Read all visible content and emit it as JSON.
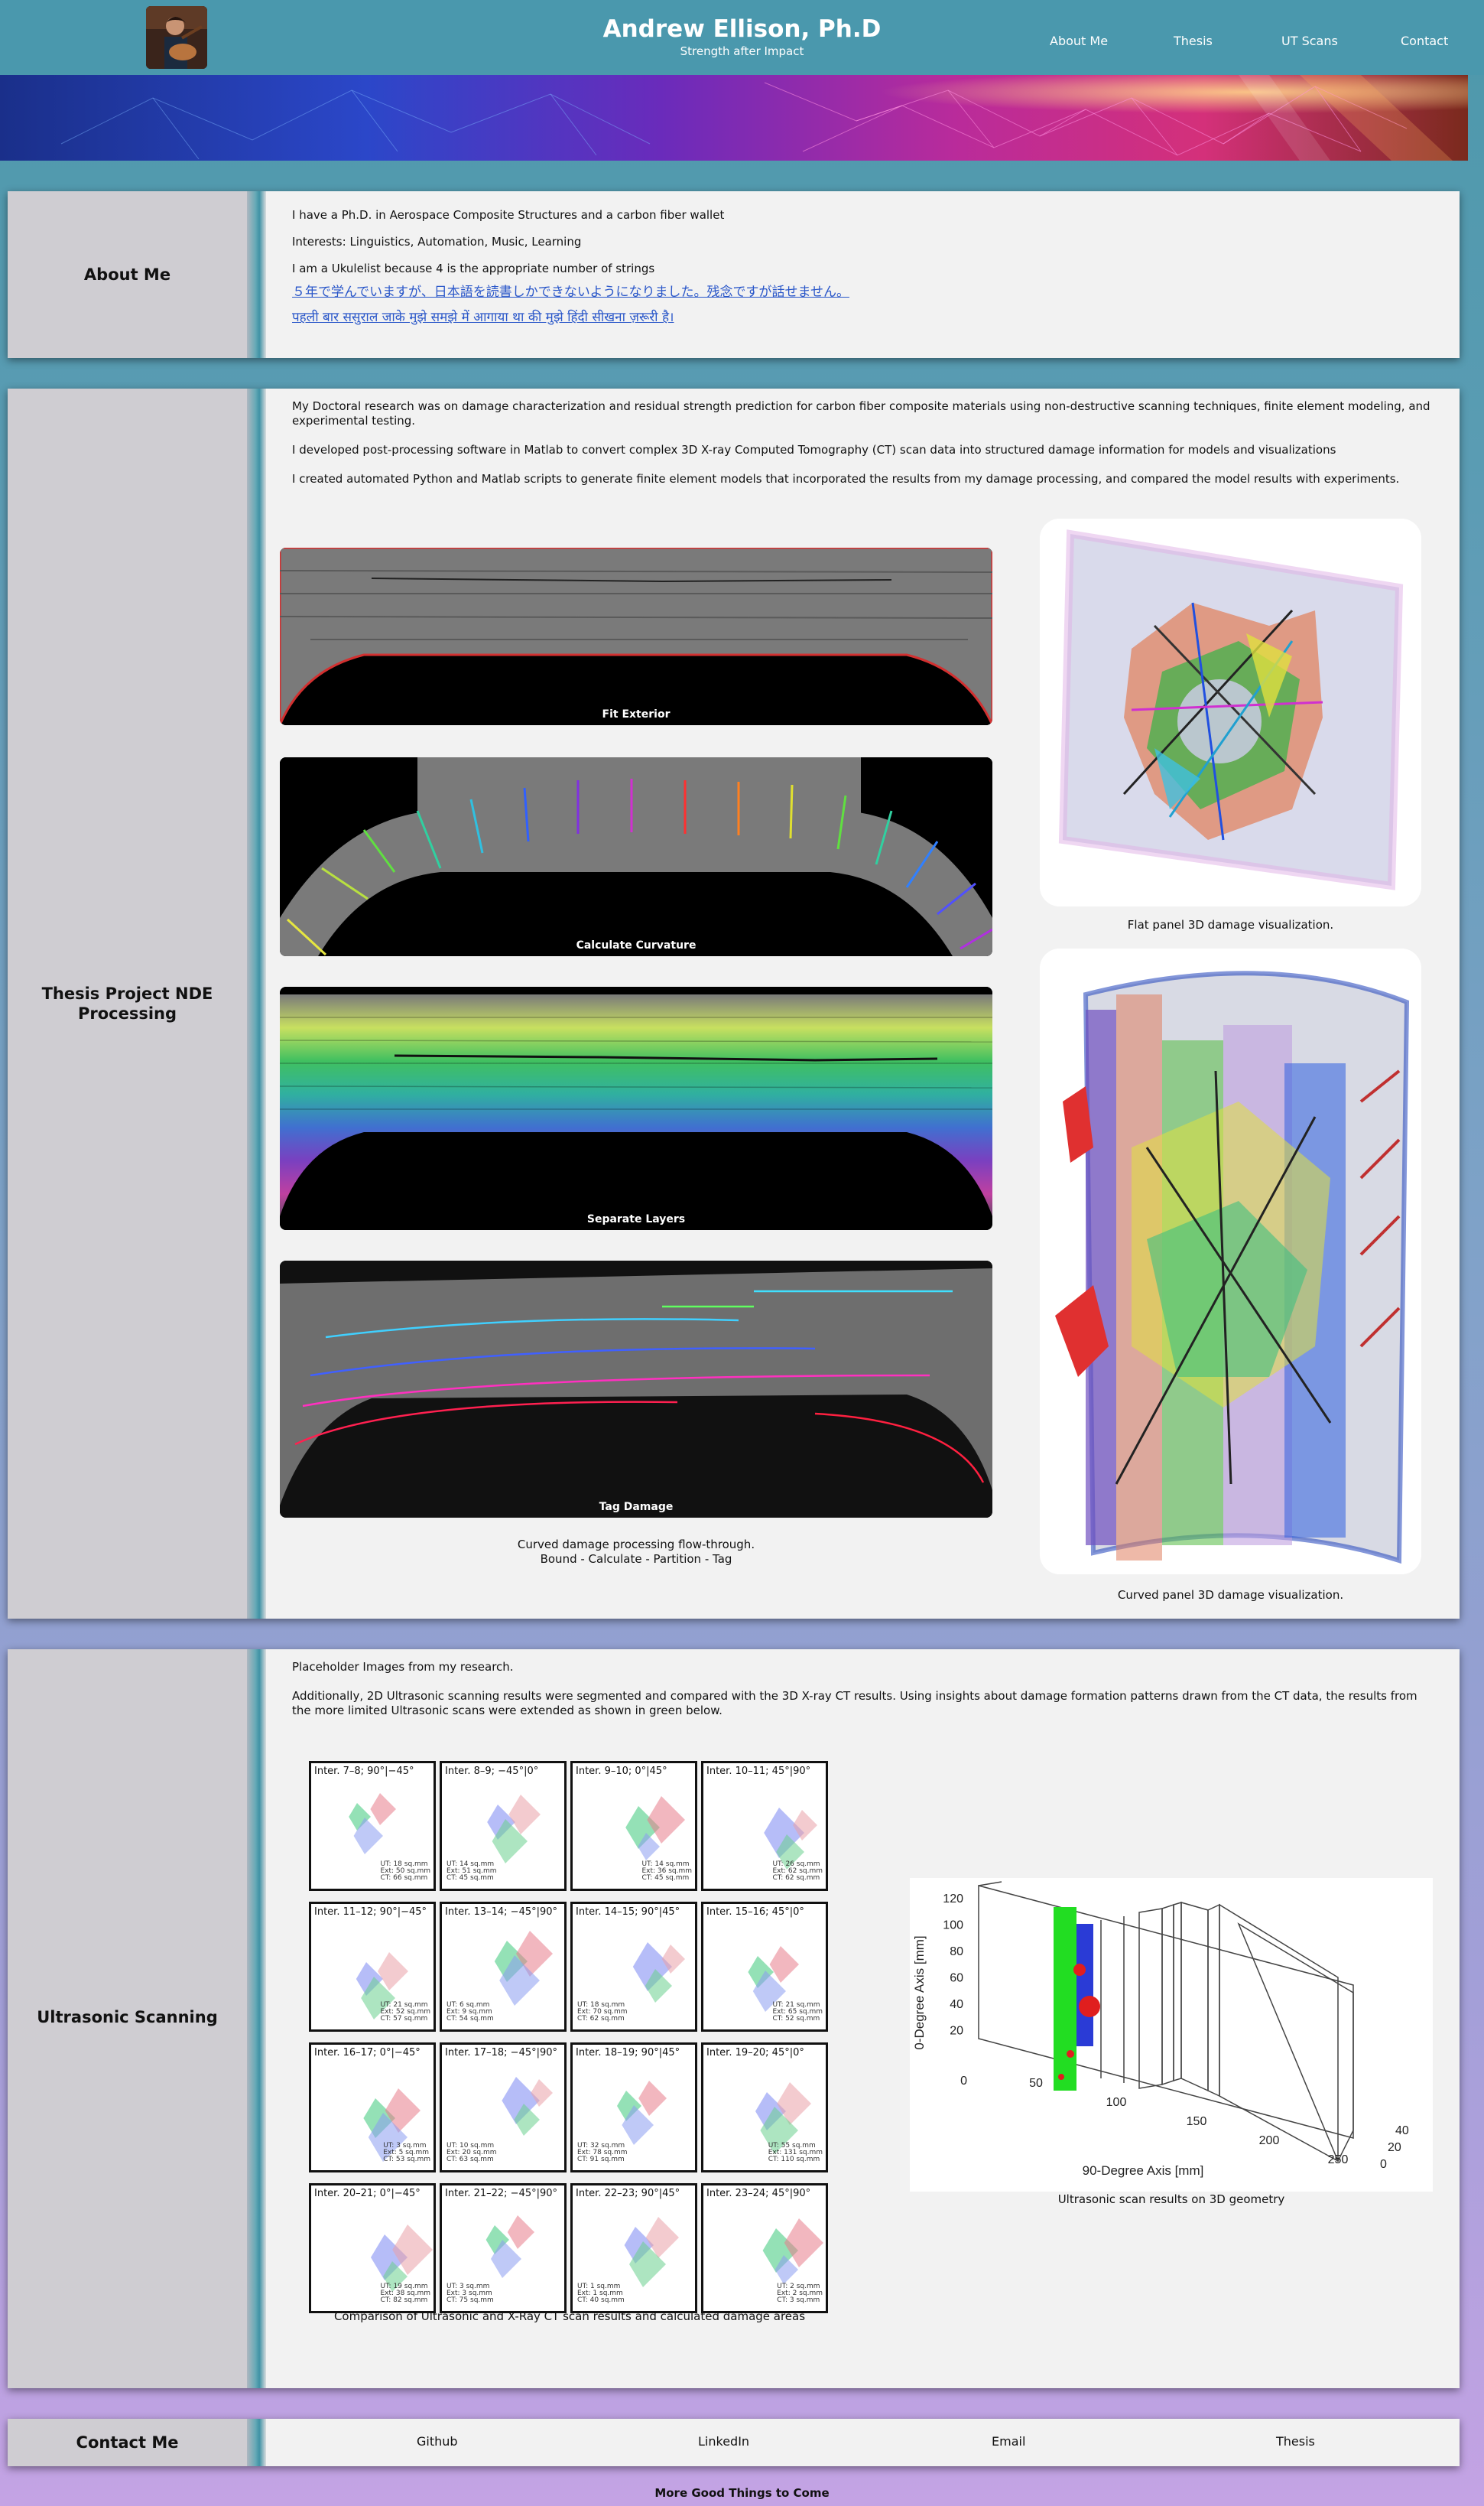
{
  "header": {
    "title": "Andrew Ellison, Ph.D",
    "subtitle": "Strength after Impact",
    "nav": [
      "About Me",
      "Thesis",
      "UT Scans",
      "Contact"
    ]
  },
  "about": {
    "heading": "About Me",
    "lines": [
      "I have a Ph.D. in Aerospace Composite Structures and a carbon fiber wallet",
      "Interests: Linguistics, Automation, Music, Learning",
      "I am a Ukulelist because 4 is the appropriate number of strings"
    ],
    "japanese": "５年で学んでいますが、日本語を読書しかできないようになりました。残念ですが話せません。",
    "hindi": "पहली बार ससुराल जाके मुझे समझे में आगाया था की मुझे हिंदी सीखना ज़रूरी है।"
  },
  "thesis": {
    "heading": "Thesis Project NDE Processing",
    "paragraphs": [
      "My Doctoral research was on damage characterization and residual strength prediction for carbon fiber composite materials using non-destructive scanning techniques, finite element modeling, and experimental testing.",
      "I developed post-processing software in Matlab to convert complex 3D X-ray Computed Tomography (CT) scan data into structured damage information for models and visualizations",
      "I created automated Python and Matlab scripts to generate finite element models that incorporated the results from my damage processing, and compared the model results with experiments."
    ],
    "panels": [
      "Fit Exterior",
      "Calculate Curvature",
      "Separate Layers",
      "Tag Damage"
    ],
    "flow_caption_1": "Curved damage processing flow-through.",
    "flow_caption_2": "Bound - Calculate - Partition - Tag",
    "flat_caption": "Flat panel 3D damage visualization.",
    "curved_caption": "Curved panel 3D damage visualization."
  },
  "ut": {
    "heading": "Ultrasonic Scanning",
    "p1": "Placeholder Images from my research.",
    "p2": "Additionally, 2D Ultrasonic scanning results were segmented and compared with the 3D X-ray CT results. Using insights about damage formation patterns drawn from the CT data, the results from the more limited Ultrasonic scans were extended as shown in green below.",
    "cells": [
      {
        "title": "Inter. 7–8; 90°|−45°",
        "stats": "UT: 18 sq.mm\nExt: 50 sq.mm\nCT: 66 sq.mm"
      },
      {
        "title": "Inter. 8–9; −45°|0°",
        "stats": "UT: 14 sq.mm\nExt: 51 sq.mm\nCT: 45 sq.mm"
      },
      {
        "title": "Inter. 9–10; 0°|45°",
        "stats": "UT: 14 sq.mm\nExt: 36 sq.mm\nCT: 45 sq.mm"
      },
      {
        "title": "Inter. 10–11; 45°|90°",
        "stats": "UT: 26 sq.mm\nExt: 62 sq.mm\nCT: 62 sq.mm"
      },
      {
        "title": "Inter. 11–12; 90°|−45°",
        "stats": "UT: 21 sq.mm\nExt: 52 sq.mm\nCT: 57 sq.mm"
      },
      {
        "title": "Inter. 13–14; −45°|90°",
        "stats": "UT: 6 sq.mm\nExt: 9 sq.mm\nCT: 54 sq.mm"
      },
      {
        "title": "Inter. 14–15; 90°|45°",
        "stats": "UT: 18 sq.mm\nExt: 70 sq.mm\nCT: 62 sq.mm"
      },
      {
        "title": "Inter. 15–16; 45°|0°",
        "stats": "UT: 21 sq.mm\nExt: 65 sq.mm\nCT: 52 sq.mm"
      },
      {
        "title": "Inter. 16–17; 0°|−45°",
        "stats": "UT: 3 sq.mm\nExt: 5 sq.mm\nCT: 53 sq.mm"
      },
      {
        "title": "Inter. 17–18; −45°|90°",
        "stats": "UT: 10 sq.mm\nExt: 20 sq.mm\nCT: 63 sq.mm"
      },
      {
        "title": "Inter. 18–19; 90°|45°",
        "stats": "UT: 32 sq.mm\nExt: 78 sq.mm\nCT: 91 sq.mm"
      },
      {
        "title": "Inter. 19–20; 45°|0°",
        "stats": "UT: 55 sq.mm\nExt: 131 sq.mm\nCT: 110 sq.mm"
      },
      {
        "title": "Inter. 20–21; 0°|−45°",
        "stats": "UT: 19 sq.mm\nExt: 38 sq.mm\nCT: 82 sq.mm"
      },
      {
        "title": "Inter. 21–22; −45°|90°",
        "stats": "UT: 3 sq.mm\nExt: 3 sq.mm\nCT: 75 sq.mm"
      },
      {
        "title": "Inter. 22–23; 90°|45°",
        "stats": "UT: 1 sq.mm\nExt: 1 sq.mm\nCT: 40 sq.mm"
      },
      {
        "title": "Inter. 23–24; 45°|90°",
        "stats": "UT: 2 sq.mm\nExt: 2 sq.mm\nCT: 3 sq.mm"
      }
    ],
    "grid_caption": "Comparison of Ultrasonic and X-Ray CT scan results and calculated damage areas",
    "plot": {
      "ylabel": "0-Degree Axis [mm]",
      "xlabel": "90-Degree Axis [mm]",
      "yticks": [
        "120",
        "100",
        "80",
        "60",
        "40",
        "20",
        "0"
      ],
      "xticks": [
        "50",
        "100",
        "150",
        "200",
        "250"
      ],
      "zticks": [
        "40",
        "20",
        "0"
      ]
    },
    "plot_caption": "Ultrasonic scan results on 3D geometry"
  },
  "contact": {
    "heading": "Contact Me",
    "links": [
      "Github",
      "LinkedIn",
      "Email",
      "Thesis"
    ]
  },
  "footer": "More Good Things to Come"
}
